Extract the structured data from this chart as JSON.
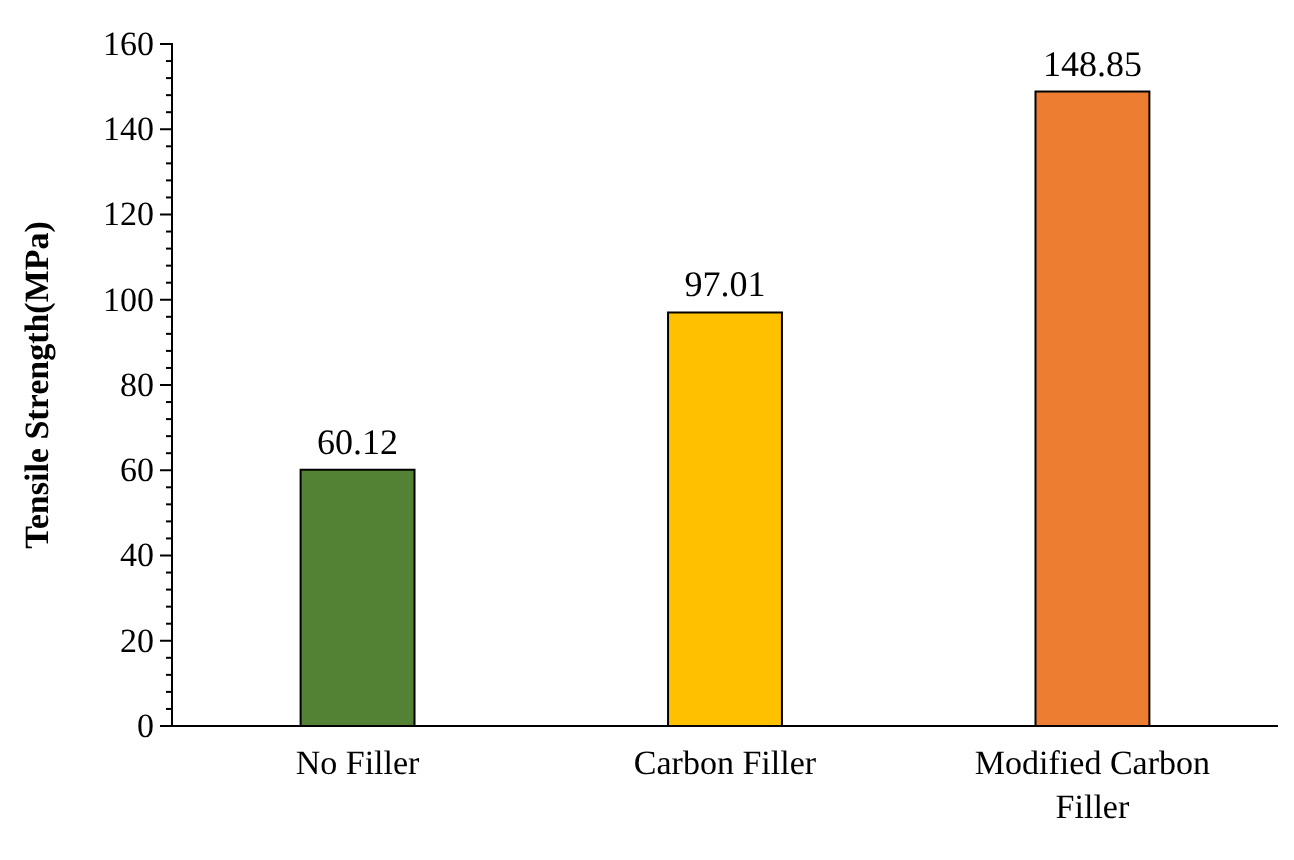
{
  "chart_data": {
    "type": "bar",
    "ylabel": "Tensile Strength(MPa)",
    "categories": [
      "No Filler",
      "Carbon Filler",
      "Modified Carbon Filler"
    ],
    "values": [
      60.12,
      97.01,
      148.85
    ],
    "colors": [
      "#548235",
      "#ffc000",
      "#ed7d31"
    ],
    "ylim": [
      0,
      160
    ],
    "yticks": [
      0,
      20,
      40,
      60,
      80,
      100,
      120,
      140,
      160
    ],
    "grid": false,
    "data_labels": true
  }
}
